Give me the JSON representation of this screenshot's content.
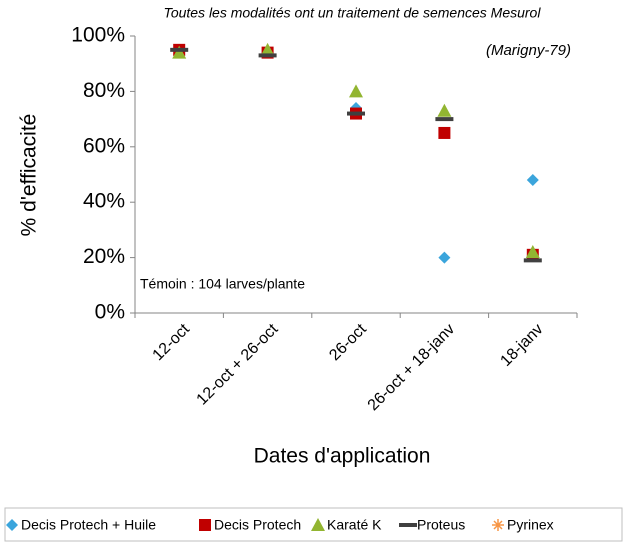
{
  "chart_data": {
    "type": "scatter",
    "annotations": [
      "Toutes les modalités  ont un traitement de semences Mesurol",
      "(Marigny-79)",
      "Témoin : 104 larves/plante"
    ],
    "y_label": "% d'efficacité",
    "x_label": "Dates d'application",
    "categories": [
      "12-oct",
      "12-oct + 26-oct",
      "26-oct",
      "26-oct + 18-janv",
      "18-janv"
    ],
    "ylim": [
      0,
      100
    ],
    "yticks": [
      {
        "value": 0,
        "label": "0%"
      },
      {
        "value": 20,
        "label": "20%"
      },
      {
        "value": 40,
        "label": "40%"
      },
      {
        "value": 60,
        "label": "60%"
      },
      {
        "value": 80,
        "label": "80%"
      },
      {
        "value": 100,
        "label": "100%"
      }
    ],
    "grid": false,
    "legend": "bottom",
    "series": [
      {
        "name": "Decis Protech + Huile",
        "color": "#3ba5dc",
        "marker": "diamond",
        "values": [
          95,
          94,
          74,
          20,
          48
        ]
      },
      {
        "name": "Decis Protech",
        "color": "#c00000",
        "marker": "square",
        "values": [
          95,
          94,
          72,
          65,
          21
        ]
      },
      {
        "name": "Karaté K",
        "color": "#92b531",
        "marker": "triangle",
        "values": [
          94,
          95,
          80,
          73,
          22
        ]
      },
      {
        "name": "Proteus",
        "color": "#404040",
        "marker": "dash",
        "values": [
          95,
          93,
          72,
          70,
          19
        ]
      },
      {
        "name": "Pyrinex",
        "color": "#f79646",
        "marker": "star",
        "values": [
          null,
          null,
          null,
          null,
          null
        ]
      }
    ]
  }
}
